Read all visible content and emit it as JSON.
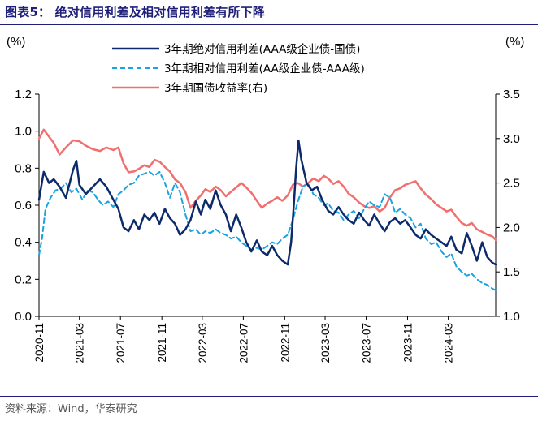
{
  "figure": {
    "title": "图表5：  绝对信用利差及相对信用利差有所下降",
    "source": "资料来源：Wind，华泰研究"
  },
  "chart_data": {
    "type": "line",
    "left_unit": "(%)",
    "right_unit": "(%)",
    "ylim_left": [
      0.0,
      1.2
    ],
    "ylim_right": [
      1.0,
      3.5
    ],
    "yticks_left": [
      "0.0",
      "0.2",
      "0.4",
      "0.6",
      "0.8",
      "1.0",
      "1.2"
    ],
    "yticks_right": [
      "1.0",
      "1.5",
      "2.0",
      "2.5",
      "3.0",
      "3.5"
    ],
    "x_ticks": [
      "2020-11",
      "2021-03",
      "2021-07",
      "2021-11",
      "2022-03",
      "2022-07",
      "2022-11",
      "2023-03",
      "2023-07",
      "2023-11",
      "2024-03"
    ],
    "x_range": [
      "2020-11-01",
      "2024-07-20"
    ],
    "grid": false,
    "legend_position": "top-center",
    "series": [
      {
        "name": "3年期绝对信用利差(AAA级企业债-国债)",
        "axis": "left",
        "color": "#0d2b6b",
        "style": "solid",
        "points": [
          [
            "2020-11-01",
            0.63
          ],
          [
            "2020-11-15",
            0.78
          ],
          [
            "2020-12-01",
            0.72
          ],
          [
            "2020-12-15",
            0.74
          ],
          [
            "2021-01-01",
            0.7
          ],
          [
            "2021-01-20",
            0.64
          ],
          [
            "2021-02-10",
            0.79
          ],
          [
            "2021-02-20",
            0.84
          ],
          [
            "2021-03-01",
            0.71
          ],
          [
            "2021-03-20",
            0.66
          ],
          [
            "2021-04-10",
            0.7
          ],
          [
            "2021-05-01",
            0.74
          ],
          [
            "2021-05-20",
            0.7
          ],
          [
            "2021-06-10",
            0.63
          ],
          [
            "2021-06-25",
            0.58
          ],
          [
            "2021-07-10",
            0.48
          ],
          [
            "2021-07-25",
            0.46
          ],
          [
            "2021-08-10",
            0.52
          ],
          [
            "2021-08-25",
            0.47
          ],
          [
            "2021-09-10",
            0.55
          ],
          [
            "2021-09-25",
            0.52
          ],
          [
            "2021-10-10",
            0.56
          ],
          [
            "2021-10-25",
            0.5
          ],
          [
            "2021-11-10",
            0.58
          ],
          [
            "2021-11-25",
            0.53
          ],
          [
            "2021-12-10",
            0.5
          ],
          [
            "2021-12-25",
            0.44
          ],
          [
            "2022-01-10",
            0.47
          ],
          [
            "2022-01-25",
            0.52
          ],
          [
            "2022-02-10",
            0.62
          ],
          [
            "2022-02-25",
            0.55
          ],
          [
            "2022-03-10",
            0.63
          ],
          [
            "2022-03-25",
            0.58
          ],
          [
            "2022-04-10",
            0.68
          ],
          [
            "2022-04-25",
            0.6
          ],
          [
            "2022-05-10",
            0.55
          ],
          [
            "2022-05-25",
            0.46
          ],
          [
            "2022-06-10",
            0.55
          ],
          [
            "2022-06-25",
            0.48
          ],
          [
            "2022-07-10",
            0.4
          ],
          [
            "2022-07-25",
            0.35
          ],
          [
            "2022-08-10",
            0.41
          ],
          [
            "2022-08-25",
            0.35
          ],
          [
            "2022-09-10",
            0.33
          ],
          [
            "2022-09-25",
            0.38
          ],
          [
            "2022-10-10",
            0.33
          ],
          [
            "2022-10-25",
            0.3
          ],
          [
            "2022-11-10",
            0.28
          ],
          [
            "2022-11-20",
            0.4
          ],
          [
            "2022-11-28",
            0.6
          ],
          [
            "2022-12-05",
            0.8
          ],
          [
            "2022-12-12",
            0.95
          ],
          [
            "2022-12-20",
            0.85
          ],
          [
            "2023-01-05",
            0.72
          ],
          [
            "2023-01-20",
            0.68
          ],
          [
            "2023-02-05",
            0.7
          ],
          [
            "2023-02-20",
            0.63
          ],
          [
            "2023-03-10",
            0.57
          ],
          [
            "2023-03-25",
            0.55
          ],
          [
            "2023-04-10",
            0.59
          ],
          [
            "2023-04-25",
            0.55
          ],
          [
            "2023-05-10",
            0.52
          ],
          [
            "2023-05-25",
            0.5
          ],
          [
            "2023-06-10",
            0.56
          ],
          [
            "2023-06-25",
            0.52
          ],
          [
            "2023-07-10",
            0.49
          ],
          [
            "2023-07-25",
            0.55
          ],
          [
            "2023-08-10",
            0.5
          ],
          [
            "2023-08-25",
            0.46
          ],
          [
            "2023-09-10",
            0.51
          ],
          [
            "2023-09-25",
            0.53
          ],
          [
            "2023-10-10",
            0.5
          ],
          [
            "2023-10-25",
            0.52
          ],
          [
            "2023-11-10",
            0.48
          ],
          [
            "2023-11-25",
            0.44
          ],
          [
            "2023-12-10",
            0.42
          ],
          [
            "2023-12-25",
            0.47
          ],
          [
            "2024-01-10",
            0.44
          ],
          [
            "2024-01-25",
            0.42
          ],
          [
            "2024-02-10",
            0.4
          ],
          [
            "2024-02-25",
            0.38
          ],
          [
            "2024-03-10",
            0.43
          ],
          [
            "2024-03-25",
            0.36
          ],
          [
            "2024-04-10",
            0.34
          ],
          [
            "2024-04-25",
            0.45
          ],
          [
            "2024-05-10",
            0.38
          ],
          [
            "2024-05-25",
            0.3
          ],
          [
            "2024-06-10",
            0.4
          ],
          [
            "2024-06-25",
            0.32
          ],
          [
            "2024-07-10",
            0.29
          ],
          [
            "2024-07-20",
            0.28
          ]
        ]
      },
      {
        "name": "3年期相对信用利差(AA级企业债-AAA级)",
        "axis": "left",
        "color": "#1aa3e0",
        "style": "dashed",
        "points": [
          [
            "2020-11-01",
            0.33
          ],
          [
            "2020-11-10",
            0.42
          ],
          [
            "2020-11-20",
            0.58
          ],
          [
            "2020-12-05",
            0.64
          ],
          [
            "2020-12-20",
            0.68
          ],
          [
            "2021-01-05",
            0.69
          ],
          [
            "2021-01-20",
            0.72
          ],
          [
            "2021-02-05",
            0.67
          ],
          [
            "2021-02-20",
            0.69
          ],
          [
            "2021-03-10",
            0.63
          ],
          [
            "2021-03-25",
            0.68
          ],
          [
            "2021-04-10",
            0.67
          ],
          [
            "2021-04-25",
            0.63
          ],
          [
            "2021-05-10",
            0.6
          ],
          [
            "2021-05-25",
            0.62
          ],
          [
            "2021-06-10",
            0.59
          ],
          [
            "2021-06-25",
            0.66
          ],
          [
            "2021-07-10",
            0.68
          ],
          [
            "2021-07-25",
            0.71
          ],
          [
            "2021-08-10",
            0.72
          ],
          [
            "2021-08-25",
            0.76
          ],
          [
            "2021-09-10",
            0.77
          ],
          [
            "2021-09-25",
            0.78
          ],
          [
            "2021-10-10",
            0.76
          ],
          [
            "2021-10-25",
            0.78
          ],
          [
            "2021-11-10",
            0.72
          ],
          [
            "2021-11-25",
            0.64
          ],
          [
            "2021-12-10",
            0.72
          ],
          [
            "2021-12-25",
            0.67
          ],
          [
            "2022-01-10",
            0.55
          ],
          [
            "2022-01-25",
            0.46
          ],
          [
            "2022-02-10",
            0.47
          ],
          [
            "2022-02-25",
            0.44
          ],
          [
            "2022-03-10",
            0.46
          ],
          [
            "2022-03-25",
            0.45
          ],
          [
            "2022-04-10",
            0.47
          ],
          [
            "2022-04-25",
            0.45
          ],
          [
            "2022-05-10",
            0.44
          ],
          [
            "2022-05-25",
            0.42
          ],
          [
            "2022-06-10",
            0.43
          ],
          [
            "2022-06-25",
            0.4
          ],
          [
            "2022-07-10",
            0.38
          ],
          [
            "2022-07-25",
            0.36
          ],
          [
            "2022-08-10",
            0.37
          ],
          [
            "2022-08-25",
            0.36
          ],
          [
            "2022-09-10",
            0.38
          ],
          [
            "2022-09-25",
            0.4
          ],
          [
            "2022-10-10",
            0.39
          ],
          [
            "2022-10-25",
            0.42
          ],
          [
            "2022-11-10",
            0.44
          ],
          [
            "2022-11-25",
            0.52
          ],
          [
            "2022-12-10",
            0.62
          ],
          [
            "2022-12-25",
            0.7
          ],
          [
            "2023-01-10",
            0.72
          ],
          [
            "2023-01-25",
            0.66
          ],
          [
            "2023-02-10",
            0.64
          ],
          [
            "2023-02-25",
            0.6
          ],
          [
            "2023-03-10",
            0.61
          ],
          [
            "2023-03-25",
            0.57
          ],
          [
            "2023-04-10",
            0.56
          ],
          [
            "2023-04-25",
            0.52
          ],
          [
            "2023-05-10",
            0.55
          ],
          [
            "2023-05-25",
            0.57
          ],
          [
            "2023-06-10",
            0.53
          ],
          [
            "2023-06-25",
            0.58
          ],
          [
            "2023-07-10",
            0.62
          ],
          [
            "2023-07-25",
            0.6
          ],
          [
            "2023-08-10",
            0.59
          ],
          [
            "2023-08-25",
            0.66
          ],
          [
            "2023-09-10",
            0.64
          ],
          [
            "2023-09-25",
            0.56
          ],
          [
            "2023-10-10",
            0.58
          ],
          [
            "2023-10-25",
            0.55
          ],
          [
            "2023-11-10",
            0.53
          ],
          [
            "2023-11-25",
            0.48
          ],
          [
            "2023-12-10",
            0.5
          ],
          [
            "2023-12-25",
            0.42
          ],
          [
            "2024-01-10",
            0.39
          ],
          [
            "2024-01-25",
            0.4
          ],
          [
            "2024-02-10",
            0.35
          ],
          [
            "2024-02-25",
            0.32
          ],
          [
            "2024-03-10",
            0.34
          ],
          [
            "2024-03-25",
            0.27
          ],
          [
            "2024-04-10",
            0.24
          ],
          [
            "2024-04-25",
            0.22
          ],
          [
            "2024-05-10",
            0.23
          ],
          [
            "2024-05-25",
            0.2
          ],
          [
            "2024-06-10",
            0.18
          ],
          [
            "2024-06-25",
            0.17
          ],
          [
            "2024-07-10",
            0.15
          ],
          [
            "2024-07-20",
            0.14
          ]
        ]
      },
      {
        "name": "3年期国债收益率(右)",
        "axis": "right",
        "color": "#f07070",
        "style": "solid",
        "points": [
          [
            "2020-11-01",
            3.0
          ],
          [
            "2020-11-15",
            3.1
          ],
          [
            "2020-12-01",
            3.02
          ],
          [
            "2020-12-15",
            2.95
          ],
          [
            "2021-01-01",
            2.82
          ],
          [
            "2021-01-20",
            2.9
          ],
          [
            "2021-02-10",
            2.98
          ],
          [
            "2021-03-01",
            2.97
          ],
          [
            "2021-03-20",
            2.92
          ],
          [
            "2021-04-10",
            2.88
          ],
          [
            "2021-05-01",
            2.86
          ],
          [
            "2021-05-20",
            2.9
          ],
          [
            "2021-06-10",
            2.87
          ],
          [
            "2021-06-25",
            2.9
          ],
          [
            "2021-07-10",
            2.72
          ],
          [
            "2021-07-25",
            2.62
          ],
          [
            "2021-08-10",
            2.63
          ],
          [
            "2021-08-25",
            2.66
          ],
          [
            "2021-09-10",
            2.7
          ],
          [
            "2021-09-25",
            2.68
          ],
          [
            "2021-10-10",
            2.76
          ],
          [
            "2021-10-25",
            2.74
          ],
          [
            "2021-11-10",
            2.68
          ],
          [
            "2021-11-25",
            2.63
          ],
          [
            "2021-12-10",
            2.54
          ],
          [
            "2021-12-25",
            2.5
          ],
          [
            "2022-01-10",
            2.4
          ],
          [
            "2022-01-25",
            2.22
          ],
          [
            "2022-02-10",
            2.3
          ],
          [
            "2022-02-25",
            2.36
          ],
          [
            "2022-03-10",
            2.43
          ],
          [
            "2022-03-25",
            2.4
          ],
          [
            "2022-04-10",
            2.46
          ],
          [
            "2022-04-25",
            2.42
          ],
          [
            "2022-05-10",
            2.35
          ],
          [
            "2022-05-25",
            2.4
          ],
          [
            "2022-06-10",
            2.45
          ],
          [
            "2022-06-25",
            2.5
          ],
          [
            "2022-07-10",
            2.45
          ],
          [
            "2022-07-25",
            2.39
          ],
          [
            "2022-08-10",
            2.3
          ],
          [
            "2022-08-25",
            2.22
          ],
          [
            "2022-09-10",
            2.27
          ],
          [
            "2022-09-25",
            2.3
          ],
          [
            "2022-10-10",
            2.34
          ],
          [
            "2022-10-25",
            2.3
          ],
          [
            "2022-11-10",
            2.36
          ],
          [
            "2022-11-25",
            2.48
          ],
          [
            "2022-12-10",
            2.5
          ],
          [
            "2022-12-25",
            2.46
          ],
          [
            "2023-01-10",
            2.5
          ],
          [
            "2023-01-25",
            2.55
          ],
          [
            "2023-02-10",
            2.52
          ],
          [
            "2023-02-25",
            2.58
          ],
          [
            "2023-03-10",
            2.55
          ],
          [
            "2023-03-25",
            2.49
          ],
          [
            "2023-04-10",
            2.52
          ],
          [
            "2023-04-25",
            2.46
          ],
          [
            "2023-05-10",
            2.38
          ],
          [
            "2023-05-25",
            2.34
          ],
          [
            "2023-06-10",
            2.28
          ],
          [
            "2023-06-25",
            2.24
          ],
          [
            "2023-07-10",
            2.22
          ],
          [
            "2023-07-25",
            2.24
          ],
          [
            "2023-08-10",
            2.18
          ],
          [
            "2023-08-25",
            2.22
          ],
          [
            "2023-09-10",
            2.34
          ],
          [
            "2023-09-25",
            2.42
          ],
          [
            "2023-10-10",
            2.44
          ],
          [
            "2023-10-25",
            2.48
          ],
          [
            "2023-11-10",
            2.5
          ],
          [
            "2023-11-25",
            2.52
          ],
          [
            "2023-12-10",
            2.44
          ],
          [
            "2023-12-25",
            2.37
          ],
          [
            "2024-01-10",
            2.32
          ],
          [
            "2024-01-25",
            2.26
          ],
          [
            "2024-02-10",
            2.22
          ],
          [
            "2024-02-25",
            2.18
          ],
          [
            "2024-03-10",
            2.2
          ],
          [
            "2024-03-25",
            2.12
          ],
          [
            "2024-04-10",
            2.05
          ],
          [
            "2024-04-25",
            2.02
          ],
          [
            "2024-05-10",
            2.05
          ],
          [
            "2024-05-25",
            1.98
          ],
          [
            "2024-06-10",
            1.95
          ],
          [
            "2024-06-25",
            1.92
          ],
          [
            "2024-07-10",
            1.9
          ],
          [
            "2024-07-20",
            1.86
          ]
        ]
      }
    ]
  }
}
